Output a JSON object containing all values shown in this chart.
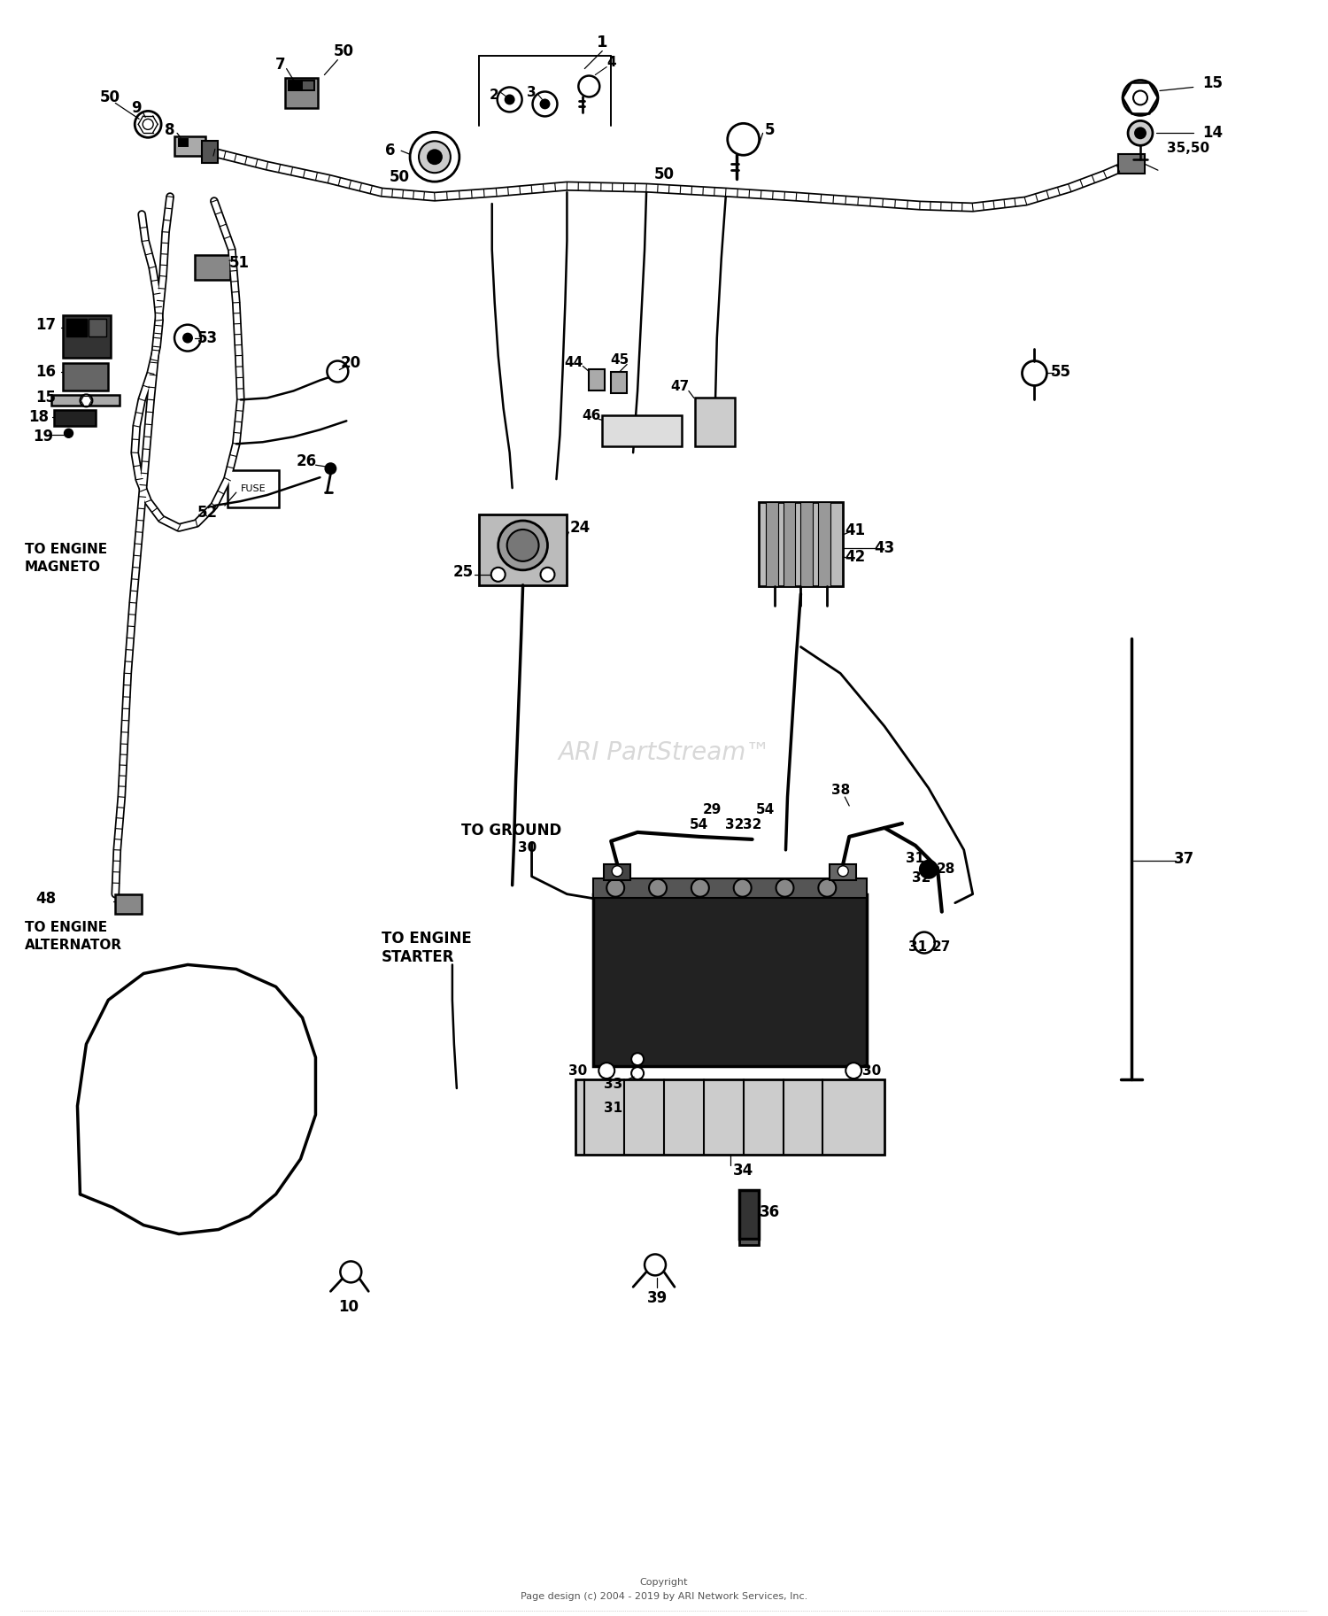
{
  "background_color": "#ffffff",
  "watermark": "ARI PartStream™",
  "copyright_line1": "Copyright",
  "copyright_line2": "Page design (c) 2004 - 2019 by ARI Network Services, Inc.",
  "fig_width": 15.0,
  "fig_height": 18.25
}
